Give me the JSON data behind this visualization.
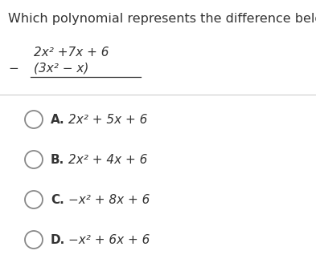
{
  "title": "Which polynomial represents the difference below?",
  "title_fontsize": 11.5,
  "bg_color": "#ffffff",
  "text_color": "#333333",
  "separator_color": "#cccccc",
  "line1": "2x² +7x + 6",
  "minus_sign": "−",
  "line2": "(3x² − x)",
  "math_fontsize": 11,
  "options": [
    {
      "label": "A.",
      "expr": "2x² + 5x + 6"
    },
    {
      "label": "B.",
      "expr": "2x² + 4x + 6"
    },
    {
      "label": "C.",
      "expr": "−x² + 8x + 6"
    },
    {
      "label": "D.",
      "expr": "−x² + 6x + 6"
    }
  ],
  "option_fontsize": 11
}
